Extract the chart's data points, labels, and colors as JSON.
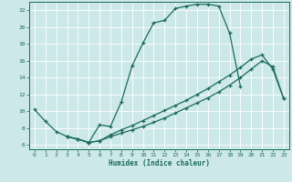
{
  "bg_color": "#cde8e8",
  "line_color": "#1a6b5a",
  "grid_color": "#ffffff",
  "xlim": [
    -0.5,
    23.5
  ],
  "ylim": [
    5.5,
    23
  ],
  "xticks": [
    0,
    1,
    2,
    3,
    4,
    5,
    6,
    7,
    8,
    9,
    10,
    11,
    12,
    13,
    14,
    15,
    16,
    17,
    18,
    19,
    20,
    21,
    22,
    23
  ],
  "yticks": [
    6,
    8,
    10,
    12,
    14,
    16,
    18,
    20,
    22
  ],
  "xlabel": "Humidex (Indice chaleur)",
  "line1_x": [
    0,
    1,
    2,
    3,
    4,
    5,
    6,
    7,
    8,
    9,
    10,
    11,
    12,
    13,
    14,
    15,
    16,
    17,
    18,
    19
  ],
  "line1_y": [
    10.2,
    8.8,
    7.6,
    7.0,
    6.7,
    6.3,
    8.4,
    8.2,
    11.1,
    15.4,
    18.1,
    20.5,
    20.8,
    22.2,
    22.5,
    22.7,
    22.7,
    22.5,
    19.3,
    13.0
  ],
  "line2_x": [
    3,
    4,
    5,
    6,
    7,
    8,
    9,
    10,
    11,
    12,
    13,
    14,
    15,
    16,
    17,
    18,
    19,
    20,
    21,
    22,
    23
  ],
  "line2_y": [
    7.0,
    6.7,
    6.3,
    6.5,
    7.2,
    7.8,
    8.3,
    8.9,
    9.5,
    10.1,
    10.7,
    11.3,
    12.0,
    12.7,
    13.5,
    14.3,
    15.2,
    16.2,
    16.7,
    15.0,
    11.5
  ],
  "line3_x": [
    3,
    4,
    5,
    6,
    7,
    8,
    9,
    10,
    11,
    12,
    13,
    14,
    15,
    16,
    17,
    18,
    19,
    20,
    21,
    22,
    23
  ],
  "line3_y": [
    7.0,
    6.7,
    6.3,
    6.5,
    7.0,
    7.4,
    7.8,
    8.2,
    8.7,
    9.2,
    9.8,
    10.4,
    11.0,
    11.6,
    12.3,
    13.1,
    14.0,
    15.0,
    16.0,
    15.3,
    11.5
  ]
}
